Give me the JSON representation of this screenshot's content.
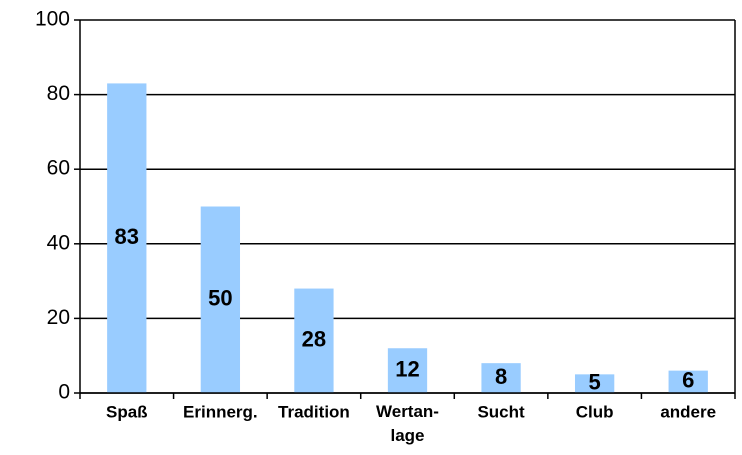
{
  "chart_data": {
    "type": "bar",
    "categories": [
      "Spaß",
      "Erinnerg.",
      "Tradition",
      "Wertan-\nlage",
      "Sucht",
      "Club",
      "andere"
    ],
    "values": [
      83,
      50,
      28,
      12,
      8,
      5,
      6
    ],
    "color": "#99ccff",
    "ylim": [
      0,
      100
    ],
    "yticks": [
      0,
      20,
      40,
      60,
      80,
      100
    ],
    "grid": true
  }
}
